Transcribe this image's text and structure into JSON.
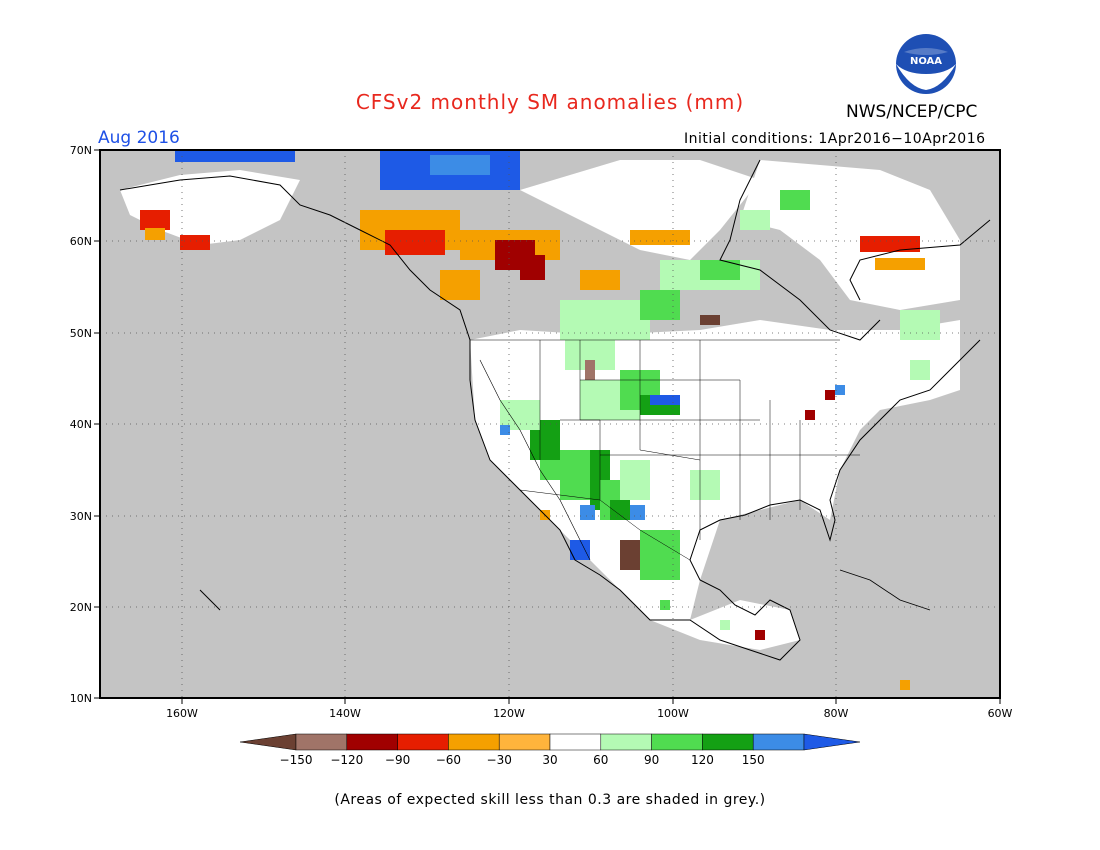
{
  "title": "CFSv2 monthly SM anomalies (mm)",
  "agency": "NWS/NCEP/CPC",
  "logo_text": "NOAA",
  "valid_month": "Aug 2016",
  "initial_conditions": "Initial conditions: 1Apr2016−10Apr2016",
  "note": "(Areas of expected skill less than 0.3 are shaded in grey.)",
  "map": {
    "lon_range": [
      -170,
      -60
    ],
    "lat_range": [
      10,
      70
    ],
    "lon_ticks": [
      "160W",
      "140W",
      "120W",
      "100W",
      "80W",
      "60W"
    ],
    "lat_ticks": [
      "10N",
      "20N",
      "30N",
      "40N",
      "50N",
      "60N",
      "70N"
    ],
    "grid": "dotted",
    "background": "#c4c4c4"
  },
  "colorbar": {
    "boundaries": [
      "−150",
      "−120",
      "−90",
      "−60",
      "−30",
      "30",
      "60",
      "90",
      "120",
      "150"
    ],
    "colors": [
      "#6b4032",
      "#a07468",
      "#a00000",
      "#e61e00",
      "#f5a000",
      "#ffb43c",
      "#ffffff",
      "#b4fab4",
      "#50dc50",
      "#14a014",
      "#3c8ce6",
      "#1e5ae6"
    ]
  },
  "colors": {
    "title": "#e8281e",
    "valid_month": "#1e50e6",
    "skill_grey": "#c4c4c4"
  }
}
